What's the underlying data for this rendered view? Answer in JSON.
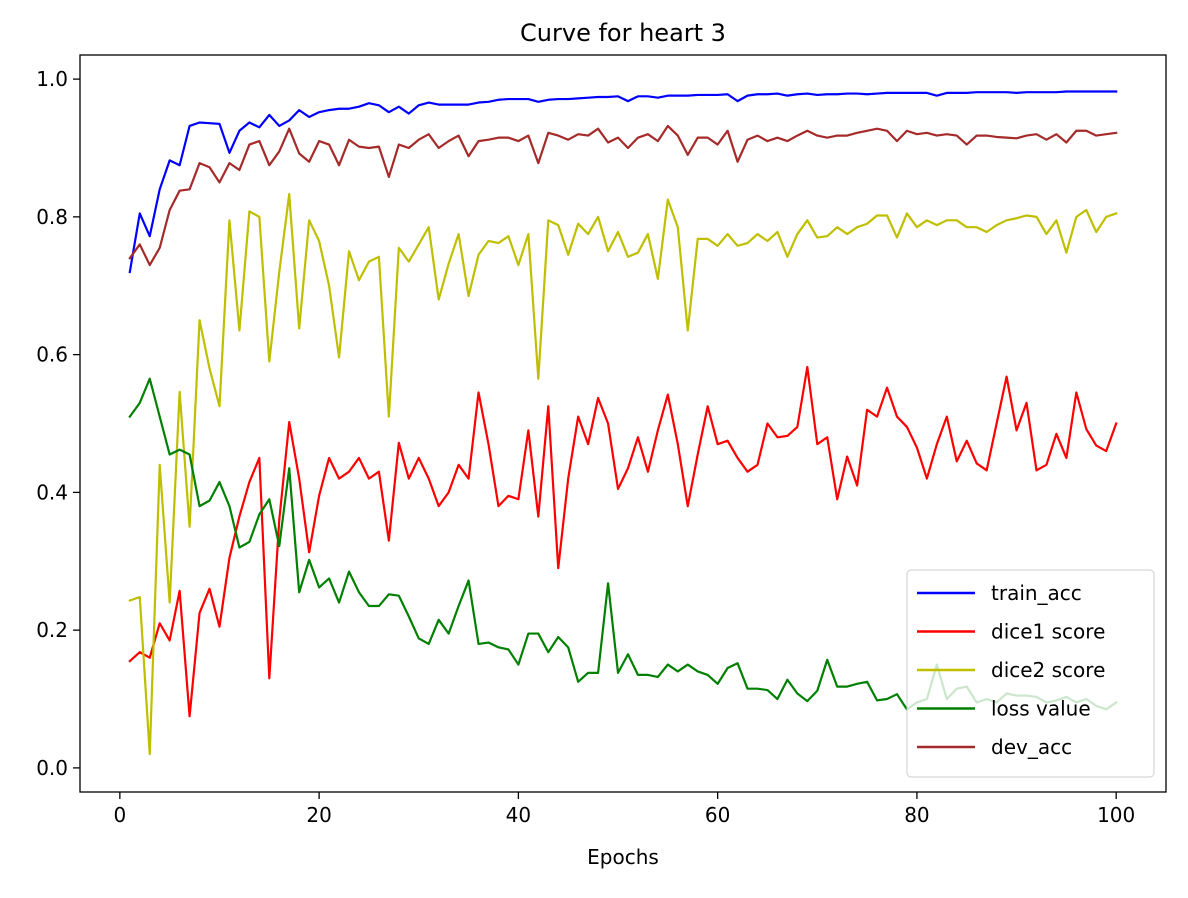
{
  "chart_data": {
    "type": "line",
    "title": "Curve for heart 3",
    "xlabel": "Epochs",
    "ylabel": "",
    "xlim": [
      -4,
      105
    ],
    "ylim": [
      -0.035,
      1.035
    ],
    "xticks": [
      0,
      20,
      40,
      60,
      80,
      100
    ],
    "yticks": [
      0.0,
      0.2,
      0.4,
      0.6,
      0.8,
      1.0
    ],
    "xtick_labels": [
      "0",
      "20",
      "40",
      "60",
      "80",
      "100"
    ],
    "ytick_labels": [
      "0.0",
      "0.2",
      "0.4",
      "0.6",
      "0.8",
      "1.0"
    ],
    "legend_position": "lower-right",
    "x": [
      1,
      2,
      3,
      4,
      5,
      6,
      7,
      8,
      9,
      10,
      11,
      12,
      13,
      14,
      15,
      16,
      17,
      18,
      19,
      20,
      21,
      22,
      23,
      24,
      25,
      26,
      27,
      28,
      29,
      30,
      31,
      32,
      33,
      34,
      35,
      36,
      37,
      38,
      39,
      40,
      41,
      42,
      43,
      44,
      45,
      46,
      47,
      48,
      49,
      50,
      51,
      52,
      53,
      54,
      55,
      56,
      57,
      58,
      59,
      60,
      61,
      62,
      63,
      64,
      65,
      66,
      67,
      68,
      69,
      70,
      71,
      72,
      73,
      74,
      75,
      76,
      77,
      78,
      79,
      80,
      81,
      82,
      83,
      84,
      85,
      86,
      87,
      88,
      89,
      90,
      91,
      92,
      93,
      94,
      95,
      96,
      97,
      98,
      99,
      100
    ],
    "series": [
      {
        "name": "train_acc",
        "color": "#0000ff",
        "values": [
          0.72,
          0.805,
          0.772,
          0.84,
          0.882,
          0.875,
          0.932,
          0.937,
          0.936,
          0.935,
          0.893,
          0.925,
          0.937,
          0.93,
          0.948,
          0.932,
          0.94,
          0.955,
          0.945,
          0.952,
          0.955,
          0.957,
          0.957,
          0.96,
          0.965,
          0.962,
          0.952,
          0.96,
          0.95,
          0.962,
          0.966,
          0.963,
          0.963,
          0.963,
          0.963,
          0.966,
          0.967,
          0.97,
          0.971,
          0.971,
          0.971,
          0.967,
          0.97,
          0.971,
          0.971,
          0.972,
          0.973,
          0.974,
          0.974,
          0.975,
          0.968,
          0.975,
          0.975,
          0.973,
          0.976,
          0.976,
          0.976,
          0.977,
          0.977,
          0.977,
          0.978,
          0.968,
          0.976,
          0.978,
          0.978,
          0.979,
          0.976,
          0.978,
          0.979,
          0.977,
          0.978,
          0.978,
          0.979,
          0.979,
          0.978,
          0.979,
          0.98,
          0.98,
          0.98,
          0.98,
          0.98,
          0.976,
          0.98,
          0.98,
          0.98,
          0.981,
          0.981,
          0.981,
          0.981,
          0.98,
          0.981,
          0.981,
          0.981,
          0.981,
          0.982,
          0.982,
          0.982,
          0.982,
          0.982,
          0.982
        ]
      },
      {
        "name": "dice1 score",
        "color": "#ff0000",
        "values": [
          0.155,
          0.168,
          0.16,
          0.21,
          0.185,
          0.257,
          0.075,
          0.225,
          0.26,
          0.205,
          0.305,
          0.365,
          0.415,
          0.45,
          0.13,
          0.36,
          0.502,
          0.42,
          0.313,
          0.395,
          0.45,
          0.42,
          0.43,
          0.45,
          0.42,
          0.43,
          0.33,
          0.472,
          0.42,
          0.45,
          0.42,
          0.38,
          0.4,
          0.44,
          0.42,
          0.545,
          0.47,
          0.38,
          0.395,
          0.39,
          0.49,
          0.365,
          0.525,
          0.29,
          0.42,
          0.51,
          0.47,
          0.537,
          0.5,
          0.405,
          0.435,
          0.48,
          0.43,
          0.49,
          0.542,
          0.47,
          0.38,
          0.455,
          0.525,
          0.47,
          0.475,
          0.45,
          0.43,
          0.44,
          0.5,
          0.48,
          0.482,
          0.495,
          0.582,
          0.47,
          0.48,
          0.39,
          0.452,
          0.41,
          0.52,
          0.51,
          0.552,
          0.51,
          0.495,
          0.465,
          0.42,
          0.47,
          0.51,
          0.445,
          0.475,
          0.442,
          0.432,
          0.5,
          0.568,
          0.49,
          0.53,
          0.432,
          0.44,
          0.485,
          0.45,
          0.545,
          0.492,
          0.468,
          0.46,
          0.5
        ]
      },
      {
        "name": "dice2 score",
        "color": "#bfbf00",
        "values": [
          0.243,
          0.248,
          0.02,
          0.44,
          0.24,
          0.546,
          0.35,
          0.65,
          0.58,
          0.525,
          0.795,
          0.635,
          0.808,
          0.8,
          0.59,
          0.72,
          0.833,
          0.638,
          0.795,
          0.765,
          0.7,
          0.596,
          0.75,
          0.708,
          0.735,
          0.742,
          0.51,
          0.755,
          0.735,
          0.76,
          0.785,
          0.68,
          0.732,
          0.775,
          0.685,
          0.745,
          0.765,
          0.762,
          0.772,
          0.73,
          0.775,
          0.565,
          0.795,
          0.788,
          0.745,
          0.79,
          0.775,
          0.8,
          0.75,
          0.778,
          0.742,
          0.748,
          0.775,
          0.71,
          0.825,
          0.785,
          0.635,
          0.768,
          0.768,
          0.758,
          0.775,
          0.758,
          0.762,
          0.775,
          0.765,
          0.778,
          0.742,
          0.775,
          0.795,
          0.77,
          0.772,
          0.785,
          0.775,
          0.785,
          0.79,
          0.802,
          0.802,
          0.77,
          0.805,
          0.785,
          0.795,
          0.788,
          0.795,
          0.795,
          0.785,
          0.785,
          0.778,
          0.788,
          0.795,
          0.798,
          0.802,
          0.8,
          0.775,
          0.795,
          0.748,
          0.8,
          0.81,
          0.778,
          0.8,
          0.805
        ]
      },
      {
        "name": "loss value",
        "color": "#008000",
        "values": [
          0.51,
          0.53,
          0.565,
          0.51,
          0.455,
          0.462,
          0.455,
          0.38,
          0.388,
          0.415,
          0.38,
          0.32,
          0.328,
          0.368,
          0.39,
          0.322,
          0.435,
          0.255,
          0.302,
          0.262,
          0.275,
          0.24,
          0.285,
          0.255,
          0.235,
          0.235,
          0.252,
          0.25,
          0.22,
          0.188,
          0.18,
          0.215,
          0.195,
          0.235,
          0.272,
          0.18,
          0.182,
          0.175,
          0.172,
          0.15,
          0.195,
          0.195,
          0.168,
          0.19,
          0.175,
          0.125,
          0.138,
          0.138,
          0.268,
          0.138,
          0.165,
          0.135,
          0.135,
          0.132,
          0.15,
          0.14,
          0.15,
          0.14,
          0.135,
          0.122,
          0.145,
          0.152,
          0.115,
          0.115,
          0.113,
          0.1,
          0.128,
          0.108,
          0.097,
          0.112,
          0.157,
          0.118,
          0.118,
          0.122,
          0.125,
          0.098,
          0.1,
          0.107,
          0.085,
          0.095,
          0.1,
          0.15,
          0.1,
          0.115,
          0.118,
          0.095,
          0.1,
          0.095,
          0.108,
          0.105,
          0.105,
          0.103,
          0.095,
          0.098,
          0.103,
          0.095,
          0.1,
          0.09,
          0.085,
          0.095
        ]
      },
      {
        "name": "dev_acc",
        "color": "#a52a2a",
        "values": [
          0.74,
          0.76,
          0.73,
          0.755,
          0.81,
          0.838,
          0.84,
          0.878,
          0.872,
          0.85,
          0.878,
          0.868,
          0.905,
          0.91,
          0.875,
          0.895,
          0.928,
          0.892,
          0.88,
          0.91,
          0.905,
          0.875,
          0.912,
          0.902,
          0.9,
          0.902,
          0.858,
          0.905,
          0.9,
          0.912,
          0.92,
          0.9,
          0.91,
          0.918,
          0.888,
          0.91,
          0.912,
          0.915,
          0.915,
          0.91,
          0.918,
          0.878,
          0.922,
          0.918,
          0.912,
          0.92,
          0.918,
          0.928,
          0.908,
          0.915,
          0.9,
          0.915,
          0.92,
          0.91,
          0.932,
          0.918,
          0.89,
          0.915,
          0.915,
          0.905,
          0.925,
          0.88,
          0.912,
          0.918,
          0.91,
          0.915,
          0.91,
          0.918,
          0.925,
          0.918,
          0.915,
          0.918,
          0.918,
          0.922,
          0.925,
          0.928,
          0.925,
          0.91,
          0.925,
          0.92,
          0.922,
          0.918,
          0.92,
          0.918,
          0.905,
          0.918,
          0.918,
          0.916,
          0.915,
          0.914,
          0.918,
          0.92,
          0.912,
          0.92,
          0.908,
          0.925,
          0.925,
          0.918,
          0.92,
          0.922
        ]
      }
    ]
  }
}
